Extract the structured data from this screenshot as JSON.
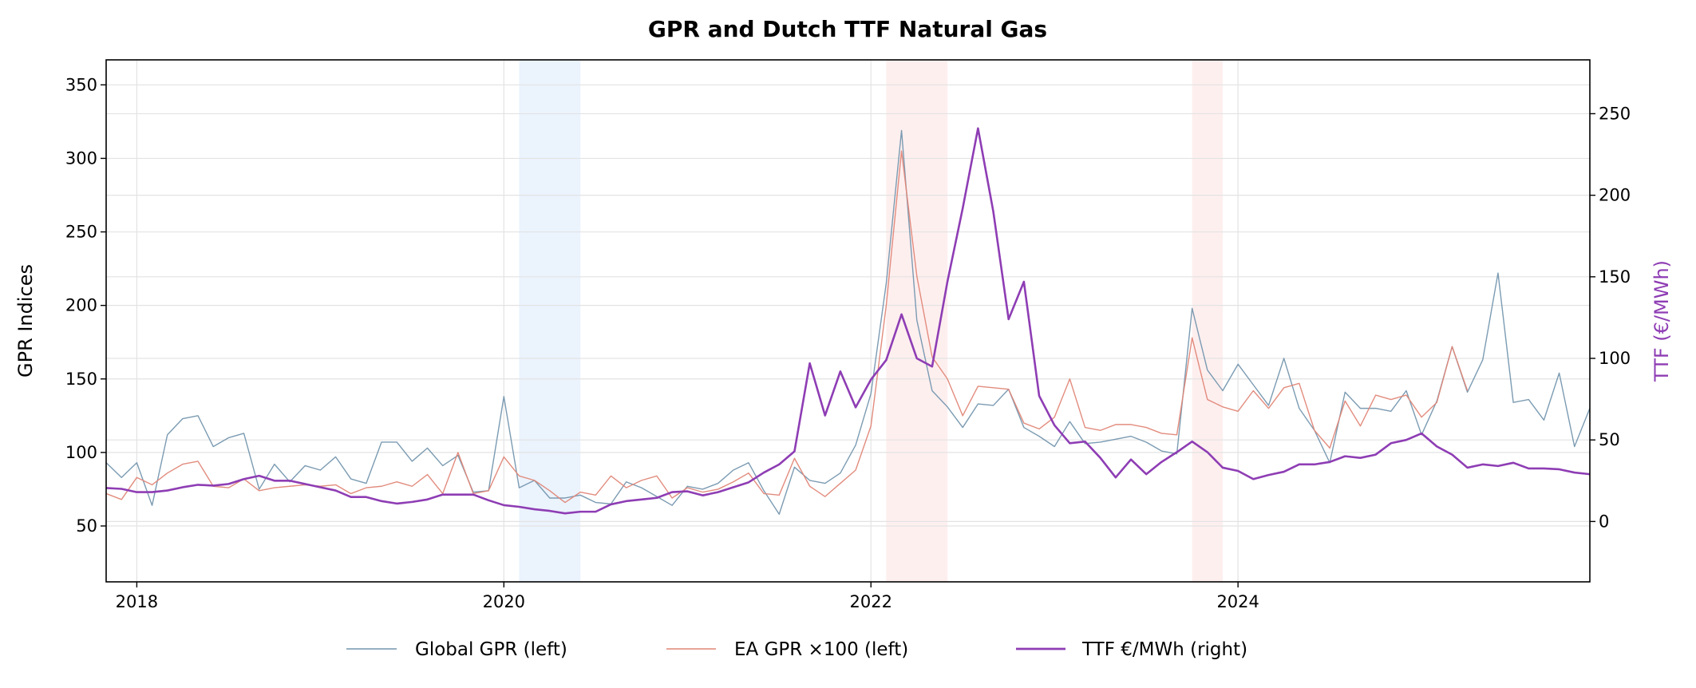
{
  "chart_data": {
    "type": "line",
    "title": "GPR and Dutch TTF Natural Gas",
    "xlabel": "",
    "ylabel_left": "GPR Indices",
    "ylabel_right": "TTF (€/MWh)",
    "x_start": "2017-11",
    "x_frequency": "monthly",
    "x_ticks": [
      "2018",
      "2020",
      "2022",
      "2024"
    ],
    "x_tick_values": [
      2018,
      2020,
      2022,
      2024
    ],
    "xlim": [
      2017.833,
      2025.917
    ],
    "ylim_left": [
      12,
      367
    ],
    "ylim_right": [
      -37,
      283
    ],
    "y_ticks_left": [
      50,
      100,
      150,
      200,
      250,
      300,
      350
    ],
    "y_ticks_right": [
      0,
      50,
      100,
      150,
      200,
      250
    ],
    "grid": true,
    "legend_position": "bottom-center",
    "shaded_periods": [
      {
        "from": 2020.083,
        "to": 2020.417,
        "color": "#dbeafb"
      },
      {
        "from": 2022.083,
        "to": 2022.417,
        "color": "#fde2e2"
      },
      {
        "from": 2023.75,
        "to": 2023.917,
        "color": "#fde2e2"
      }
    ],
    "series": [
      {
        "name": "Global GPR (left)",
        "axis": "left",
        "color": "#7496ae",
        "values": [
          93,
          83,
          93,
          64,
          112,
          123,
          125,
          104,
          110,
          113,
          75,
          92,
          80,
          91,
          88,
          97,
          82,
          79,
          107,
          107,
          94,
          103,
          91,
          98,
          73,
          74,
          138,
          76,
          81,
          69,
          69,
          71,
          66,
          65,
          80,
          76,
          70,
          64,
          77,
          75,
          79,
          88,
          93,
          74,
          58,
          90,
          81,
          79,
          86,
          105,
          140,
          215,
          319,
          190,
          142,
          131,
          117,
          133,
          132,
          143,
          117,
          111,
          104,
          121,
          106,
          107,
          109,
          111,
          107,
          101,
          99,
          198,
          156,
          142,
          160,
          146,
          132,
          164,
          130,
          115,
          93,
          141,
          130,
          130,
          128,
          142,
          112,
          135,
          172,
          141,
          163,
          222,
          134,
          136,
          122,
          154,
          104,
          130
        ]
      },
      {
        "name": "EA GPR ×100 (left)",
        "axis": "left",
        "color": "#e08677",
        "values": [
          72,
          68,
          83,
          78,
          86,
          92,
          94,
          77,
          76,
          82,
          74,
          76,
          77,
          78,
          77,
          78,
          72,
          76,
          77,
          80,
          77,
          85,
          72,
          100,
          72,
          74,
          97,
          84,
          81,
          74,
          66,
          73,
          71,
          84,
          76,
          81,
          84,
          69,
          76,
          73,
          75,
          80,
          86,
          72,
          71,
          96,
          77,
          70,
          79,
          88,
          118,
          200,
          305,
          220,
          165,
          150,
          125,
          145,
          144,
          143,
          120,
          116,
          124,
          150,
          117,
          115,
          119,
          119,
          117,
          113,
          112,
          178,
          136,
          131,
          128,
          142,
          130,
          144,
          147,
          115,
          103,
          135,
          118,
          139,
          136,
          139,
          124,
          134,
          172,
          142
        ]
      },
      {
        "name": "TTF €/MWh (right)",
        "axis": "right",
        "color": "#8e3db4",
        "values": [
          20.5,
          20,
          18,
          18,
          19,
          21,
          22.5,
          22,
          23,
          26,
          28,
          25,
          25,
          23,
          21,
          19,
          15,
          15,
          12.5,
          11,
          12,
          13.5,
          16.5,
          16.5,
          16.5,
          13,
          10,
          9,
          7.5,
          6.5,
          5,
          6,
          6,
          10.5,
          12.5,
          13.5,
          14.5,
          18,
          18.5,
          16,
          18,
          21,
          24,
          30,
          35,
          43,
          97,
          65,
          92,
          70,
          87,
          99,
          127,
          100,
          95,
          147,
          192,
          241,
          190,
          124,
          147,
          77,
          59,
          48,
          49,
          39,
          27,
          38,
          29,
          36.5,
          42.5,
          49,
          42.5,
          33,
          31,
          26,
          28.5,
          30.5,
          35,
          35,
          36.5,
          40,
          39,
          41,
          48,
          50,
          54,
          46,
          41,
          33,
          35,
          34,
          36,
          32.5,
          32.5,
          32,
          30,
          29
        ]
      }
    ]
  }
}
